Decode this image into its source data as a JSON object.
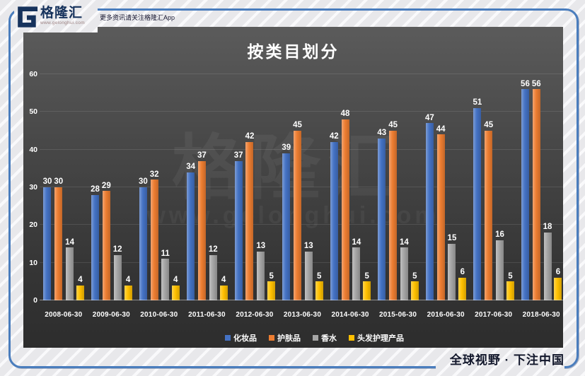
{
  "branding": {
    "logo_text": "格隆汇",
    "logo_url": "www.gelonghui.com",
    "app_note": "更多资讯请关注格隆汇App",
    "tagline": "全球视野 · 下注中国",
    "watermark_text": "格隆汇",
    "watermark_url": "www.gelonghui.com",
    "accent_color": "#4a7dbd",
    "logo_color": "#16325c"
  },
  "chart_data": {
    "type": "bar",
    "title": "按类目划分",
    "categories": [
      "2008-06-30",
      "2009-06-30",
      "2010-06-30",
      "2011-06-30",
      "2012-06-30",
      "2013-06-30",
      "2014-06-30",
      "2015-06-30",
      "2016-06-30",
      "2017-06-30",
      "2018-06-30"
    ],
    "series": [
      {
        "name": "化妆品",
        "color": "#4472C4",
        "values": [
          30,
          28,
          30,
          34,
          37,
          39,
          42,
          43,
          47,
          51,
          56
        ]
      },
      {
        "name": "护肤品",
        "color": "#ED7D31",
        "values": [
          30,
          29,
          32,
          37,
          42,
          45,
          48,
          45,
          44,
          45,
          56
        ]
      },
      {
        "name": "香水",
        "color": "#A5A5A5",
        "values": [
          14,
          12,
          11,
          12,
          13,
          13,
          14,
          14,
          15,
          16,
          18
        ]
      },
      {
        "name": "头发护理产品",
        "color": "#FFC000",
        "values": [
          4,
          4,
          4,
          4,
          5,
          5,
          5,
          5,
          6,
          5,
          6
        ]
      }
    ],
    "xlabel": "",
    "ylabel": "",
    "ylim": [
      0,
      60
    ],
    "yticks": [
      0,
      10,
      20,
      30,
      40,
      50,
      60
    ],
    "grid": true,
    "legend_position": "bottom",
    "plot_background": "#474747",
    "label_color": "#ffffff"
  }
}
